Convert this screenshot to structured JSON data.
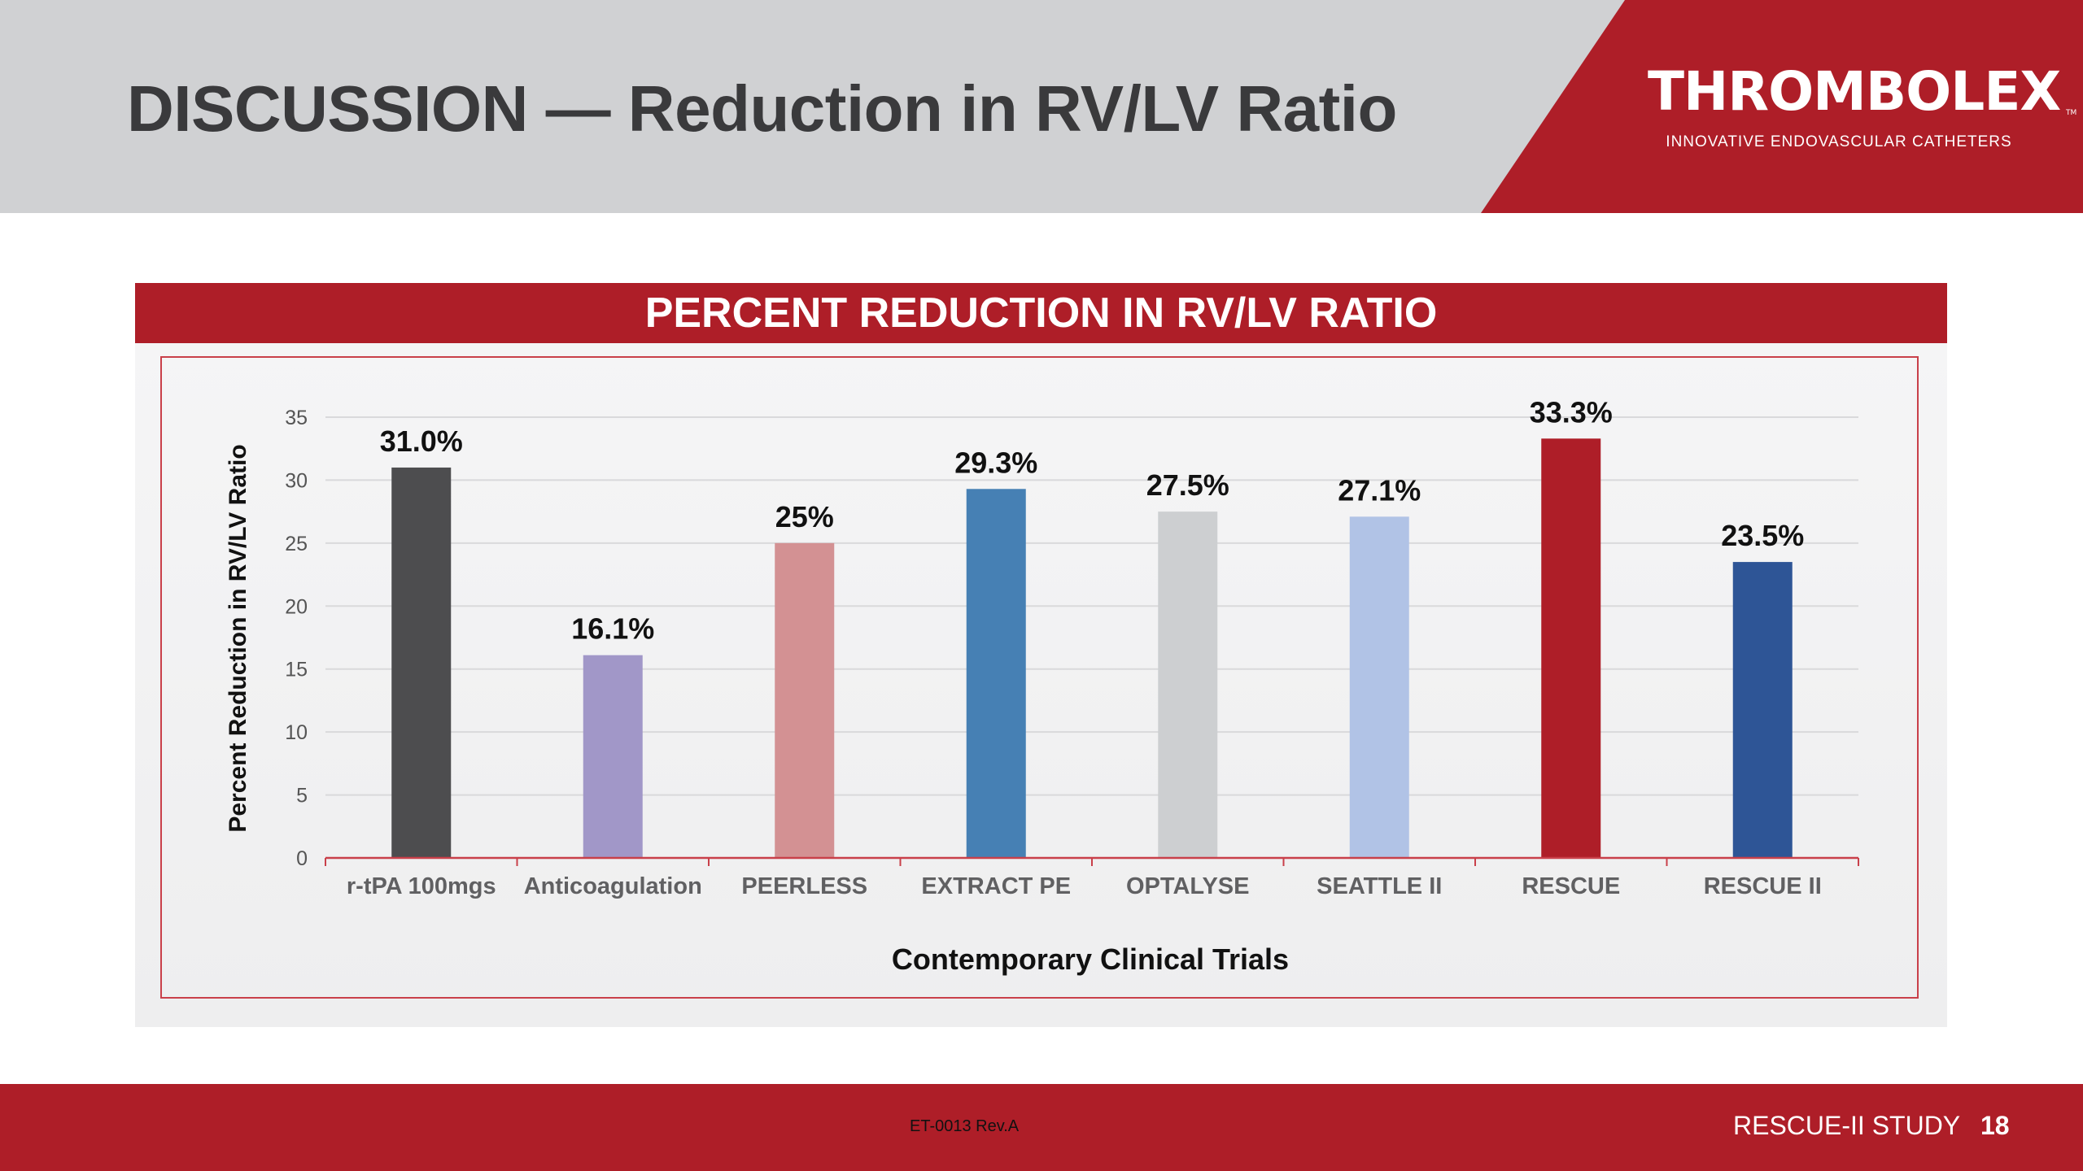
{
  "slide": {
    "title": "DISCUSSION — Reduction in RV/LV Ratio",
    "logo": {
      "name": "THROMBOLEX",
      "trademark": "TM",
      "tagline": "INNOVATIVE ENDOVASCULAR CATHETERS"
    },
    "footer": {
      "document_id": "ET-0013 Rev.A",
      "study": "RESCUE-II STUDY",
      "page_number": "18"
    },
    "colors": {
      "brand_red": "#ae1e28",
      "header_gray": "#d0d1d3",
      "title_text": "#3a3a3c"
    }
  },
  "chart_data": {
    "type": "bar",
    "title": "PERCENT REDUCTION IN RV/LV RATIO",
    "xlabel": "Contemporary Clinical Trials",
    "ylabel": "Percent Reduction in RV/LV Ratio",
    "ylim": [
      0,
      35
    ],
    "yticks": [
      0,
      5,
      10,
      15,
      20,
      25,
      30,
      35
    ],
    "grid": true,
    "legend": "none",
    "categories": [
      "r-tPA 100mgs",
      "Anticoagulation",
      "PEERLESS",
      "EXTRACT PE",
      "OPTALYSE",
      "SEATTLE II",
      "RESCUE",
      "RESCUE II"
    ],
    "values": [
      31.0,
      16.1,
      25,
      29.3,
      27.5,
      27.1,
      33.3,
      23.5
    ],
    "data_labels": [
      "31.0%",
      "16.1%",
      "25%",
      "29.3%",
      "27.5%",
      "27.1%",
      "33.3%",
      "23.5%"
    ],
    "bar_colors": [
      "#4d4d4f",
      "#a197c8",
      "#d39193",
      "#4680b4",
      "#cdcfd1",
      "#b1c3e6",
      "#ae1e28",
      "#2e5596"
    ]
  }
}
